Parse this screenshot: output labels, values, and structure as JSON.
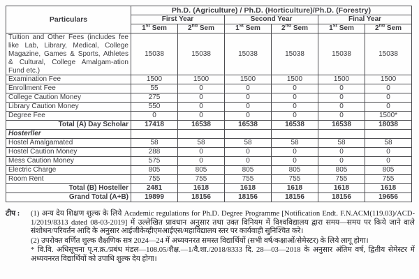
{
  "table": {
    "particulars_header": "Particulars",
    "program_header": "Ph.D. (Agriculture) / Ph.D. (Horticulture)/Ph.D. (Forestry)",
    "year_headers": [
      "First Year",
      "Second Year",
      "Final Year"
    ],
    "sem_headers": [
      {
        "num": "1",
        "ord": "st",
        "text": " Sem"
      },
      {
        "num": "2",
        "ord": "nd",
        "text": " Sem"
      }
    ],
    "rows": [
      {
        "type": "fee-tall",
        "label": "Tuition and Other Fees (includes fee like Lab, Library, Medical, College Magazine, Games & Sports, Athletes & Cultural, College Amalgam-ation Fund etc.)",
        "values": [
          "15038",
          "15038",
          "15038",
          "15038",
          "15038",
          "15038"
        ]
      },
      {
        "type": "fee",
        "label": "Examination Fee",
        "values": [
          "1500",
          "1500",
          "1500",
          "1500",
          "1500",
          "1500"
        ]
      },
      {
        "type": "fee",
        "label": "Enrollment Fee",
        "values": [
          "55",
          "0",
          "0",
          "0",
          "0",
          "0"
        ]
      },
      {
        "type": "fee",
        "label": "College Caution Money",
        "values": [
          "275",
          "0",
          "0",
          "0",
          "0",
          "0"
        ]
      },
      {
        "type": "fee",
        "label": "Library Caution Money",
        "values": [
          "550",
          "0",
          "0",
          "0",
          "0",
          "0"
        ]
      },
      {
        "type": "fee",
        "label": "Degree Fee",
        "values": [
          "0",
          "0",
          "0",
          "0",
          "0",
          "1500*"
        ]
      },
      {
        "type": "total",
        "label": "Total (A) Day Scholar",
        "values": [
          "17418",
          "16538",
          "16538",
          "16538",
          "16538",
          "18038"
        ]
      },
      {
        "type": "section",
        "label": "Hosterller",
        "values": [
          "",
          "",
          "",
          "",
          "",
          ""
        ]
      },
      {
        "type": "fee",
        "label": "Hostel Amalgamated",
        "values": [
          "58",
          "58",
          "58",
          "58",
          "58",
          "58"
        ]
      },
      {
        "type": "fee",
        "label": "Hostel Caution Money",
        "values": [
          "288",
          "0",
          "0",
          "0",
          "0",
          "0"
        ]
      },
      {
        "type": "fee",
        "label": "Mess Caution Money",
        "values": [
          "575",
          "0",
          "0",
          "0",
          "0",
          "0"
        ]
      },
      {
        "type": "fee",
        "label": "Electric Charge",
        "values": [
          "805",
          "805",
          "805",
          "805",
          "805",
          "805"
        ]
      },
      {
        "type": "fee",
        "label": "Room Rent",
        "values": [
          "755",
          "755",
          "755",
          "755",
          "755",
          "755"
        ]
      },
      {
        "type": "total",
        "label": "Total (B) Hosteller",
        "values": [
          "2481",
          "1618",
          "1618",
          "1618",
          "1618",
          "1618"
        ]
      },
      {
        "type": "total",
        "label": "Grand Total (A+B)",
        "values": [
          "19899",
          "18156",
          "18156",
          "18156",
          "18156",
          "19656"
        ]
      }
    ]
  },
  "notes": {
    "tip_label": "टीप :",
    "note1": "(1) अन्य देय शिक्षण शुल्क के लिये Academic regulations for Ph.D. Degree Programme [Notification Endt. F.N.ACM(119.03)/ACD-1/2019/8313 dated 08-03-2019] में उल्लेखित प्रावधान अनुसार तथा उक्त विनियम में विश्वविद्यालय द्वारा समय—समय पर किये जाने वाले संशोधन/परिवर्तन आदि के अनुसार आईजीकेव्हीएमआईएस/महाविद्यालय स्तर पर कार्यवाही सुनिश्चित करे।",
    "note2": "(2) उपरोक्त वर्णित शुल्क शैक्षणिक सत्र 2024—24 में अध्ययनरत समस्त विद्यार्थियों (सभी वर्ष/कक्षाओं/सेमेस्टर) के लिये लागू होगा।",
    "footnote": "* वि.वि. अधिसूचना पृ.न.क्र./प्रबंध मंडल—108.05/शैक्ष.—1/वै.शा./2018/8333 दि. 28—03—2018 के अनुसार अंतिम वर्ष, द्वितीय सेमेस्टर में अध्ययनरत विद्यार्थियों को उपाधि शुल्क देय होगा।"
  },
  "colors": {
    "table_text": "#3c3c40",
    "table_border": "#4c4c50",
    "note_text": "#1e1e22",
    "background": "#fdfdfd"
  }
}
